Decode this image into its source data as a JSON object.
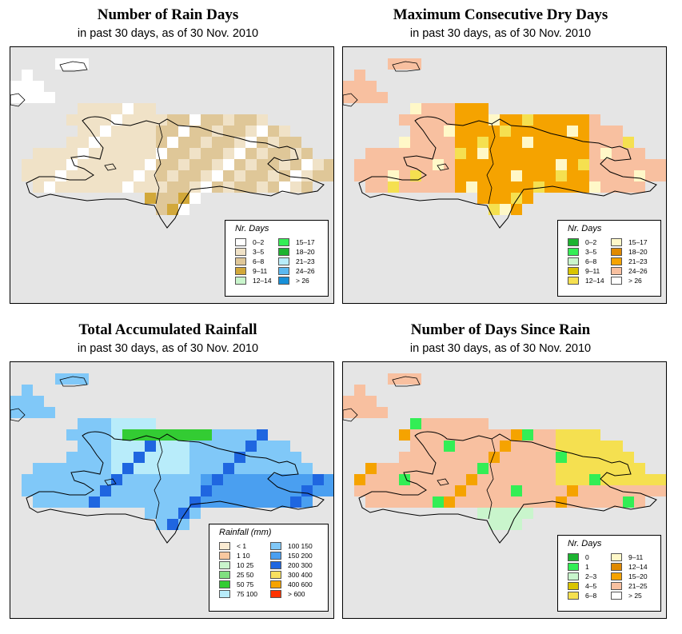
{
  "panels": [
    {
      "title": "Number of Rain Days",
      "subtitle": "in past 30 days, as of  30 Nov. 2010",
      "legend": {
        "title": "Nr. Days",
        "items": [
          {
            "label": "0–2",
            "color": "#ffffff"
          },
          {
            "label": "3–5",
            "color": "#f0e2c7"
          },
          {
            "label": "6–8",
            "color": "#dfc798"
          },
          {
            "label": "9–11",
            "color": "#d2a83a"
          },
          {
            "label": "12–14",
            "color": "#c9f5cc"
          },
          {
            "label": "15–17",
            "color": "#33ee55"
          },
          {
            "label": "18–20",
            "color": "#1cb330"
          },
          {
            "label": "21–23",
            "color": "#b8ecfa"
          },
          {
            "label": "24–26",
            "color": "#5bb8f0"
          },
          {
            "label": "> 26",
            "color": "#1890d8"
          }
        ]
      }
    },
    {
      "title": "Maximum Consecutive Dry Days",
      "subtitle": "in past 30 days, as of  30 Nov. 2010",
      "legend": {
        "title": "Nr. Days",
        "items": [
          {
            "label": "0–2",
            "color": "#1cb330"
          },
          {
            "label": "3–5",
            "color": "#33ee55"
          },
          {
            "label": "6–8",
            "color": "#c9f5cc"
          },
          {
            "label": "9–11",
            "color": "#d9c400"
          },
          {
            "label": "12–14",
            "color": "#f5e050"
          },
          {
            "label": "15–17",
            "color": "#fff8c8"
          },
          {
            "label": "18–20",
            "color": "#e08a00"
          },
          {
            "label": "21–23",
            "color": "#f5a300"
          },
          {
            "label": "24–26",
            "color": "#f8c0a0"
          },
          {
            "label": "> 26",
            "color": "#ffffff"
          }
        ]
      }
    },
    {
      "title": "Total Accumulated Rainfall",
      "subtitle": "in past 30 days, as of  30 Nov. 2010",
      "legend": {
        "title": "Rainfall (mm)",
        "items": [
          {
            "label": "< 1",
            "color": "#fbebd2"
          },
          {
            "label": "1    10",
            "color": "#f8c8a0"
          },
          {
            "label": "10    25",
            "color": "#c9f5cc"
          },
          {
            "label": "25    50",
            "color": "#80e080"
          },
          {
            "label": "50    75",
            "color": "#33cc33"
          },
          {
            "label": "75   100",
            "color": "#b8ecfa"
          },
          {
            "label": "100   150",
            "color": "#80c8f8"
          },
          {
            "label": "150   200",
            "color": "#4a9ff0"
          },
          {
            "label": "200   300",
            "color": "#1f66e0"
          },
          {
            "label": "300   400",
            "color": "#f8e060"
          },
          {
            "label": "400   600",
            "color": "#f5a300"
          },
          {
            "label": "> 600",
            "color": "#ff3300"
          }
        ]
      }
    },
    {
      "title": "Number of Days Since Rain",
      "subtitle": "in past 30 days, as of  30 Nov. 2010",
      "legend": {
        "title": "Nr. Days",
        "items": [
          {
            "label": "0",
            "color": "#1cb330"
          },
          {
            "label": "1",
            "color": "#33ee55"
          },
          {
            "label": "2–3",
            "color": "#c9f5cc"
          },
          {
            "label": "4–5",
            "color": "#d9c400"
          },
          {
            "label": "6–8",
            "color": "#f5e050"
          },
          {
            "label": "9–11",
            "color": "#fff8c8"
          },
          {
            "label": "12–14",
            "color": "#e08a00"
          },
          {
            "label": "15–20",
            "color": "#f5a300"
          },
          {
            "label": "21–25",
            "color": "#f8c0a0"
          },
          {
            "label": "> 25",
            "color": "#ffffff"
          }
        ]
      }
    }
  ]
}
